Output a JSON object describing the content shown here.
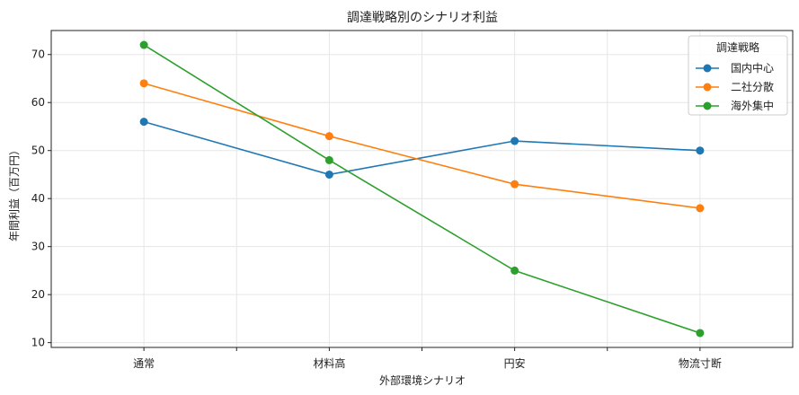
{
  "chart_data": {
    "type": "line",
    "title": "調達戦略別のシナリオ利益",
    "xlabel": "外部環境シナリオ",
    "ylabel": "年間利益（百万円）",
    "categories": [
      "通常",
      "材料高",
      "円安",
      "物流寸断"
    ],
    "ylim": [
      9,
      75
    ],
    "yticks": [
      10,
      20,
      30,
      40,
      50,
      60,
      70
    ],
    "grid": true,
    "legend": {
      "title": "調達戦略",
      "placement": "top-right",
      "entries": [
        "国内中心",
        "二社分散",
        "海外集中"
      ]
    },
    "series": [
      {
        "name": "国内中心",
        "color": "#1f77b4",
        "values": [
          56,
          45,
          52,
          50
        ]
      },
      {
        "name": "二社分散",
        "color": "#ff7f0e",
        "values": [
          64,
          53,
          43,
          38
        ]
      },
      {
        "name": "海外集中",
        "color": "#2ca02c",
        "values": [
          72,
          48,
          25,
          12
        ]
      }
    ]
  }
}
